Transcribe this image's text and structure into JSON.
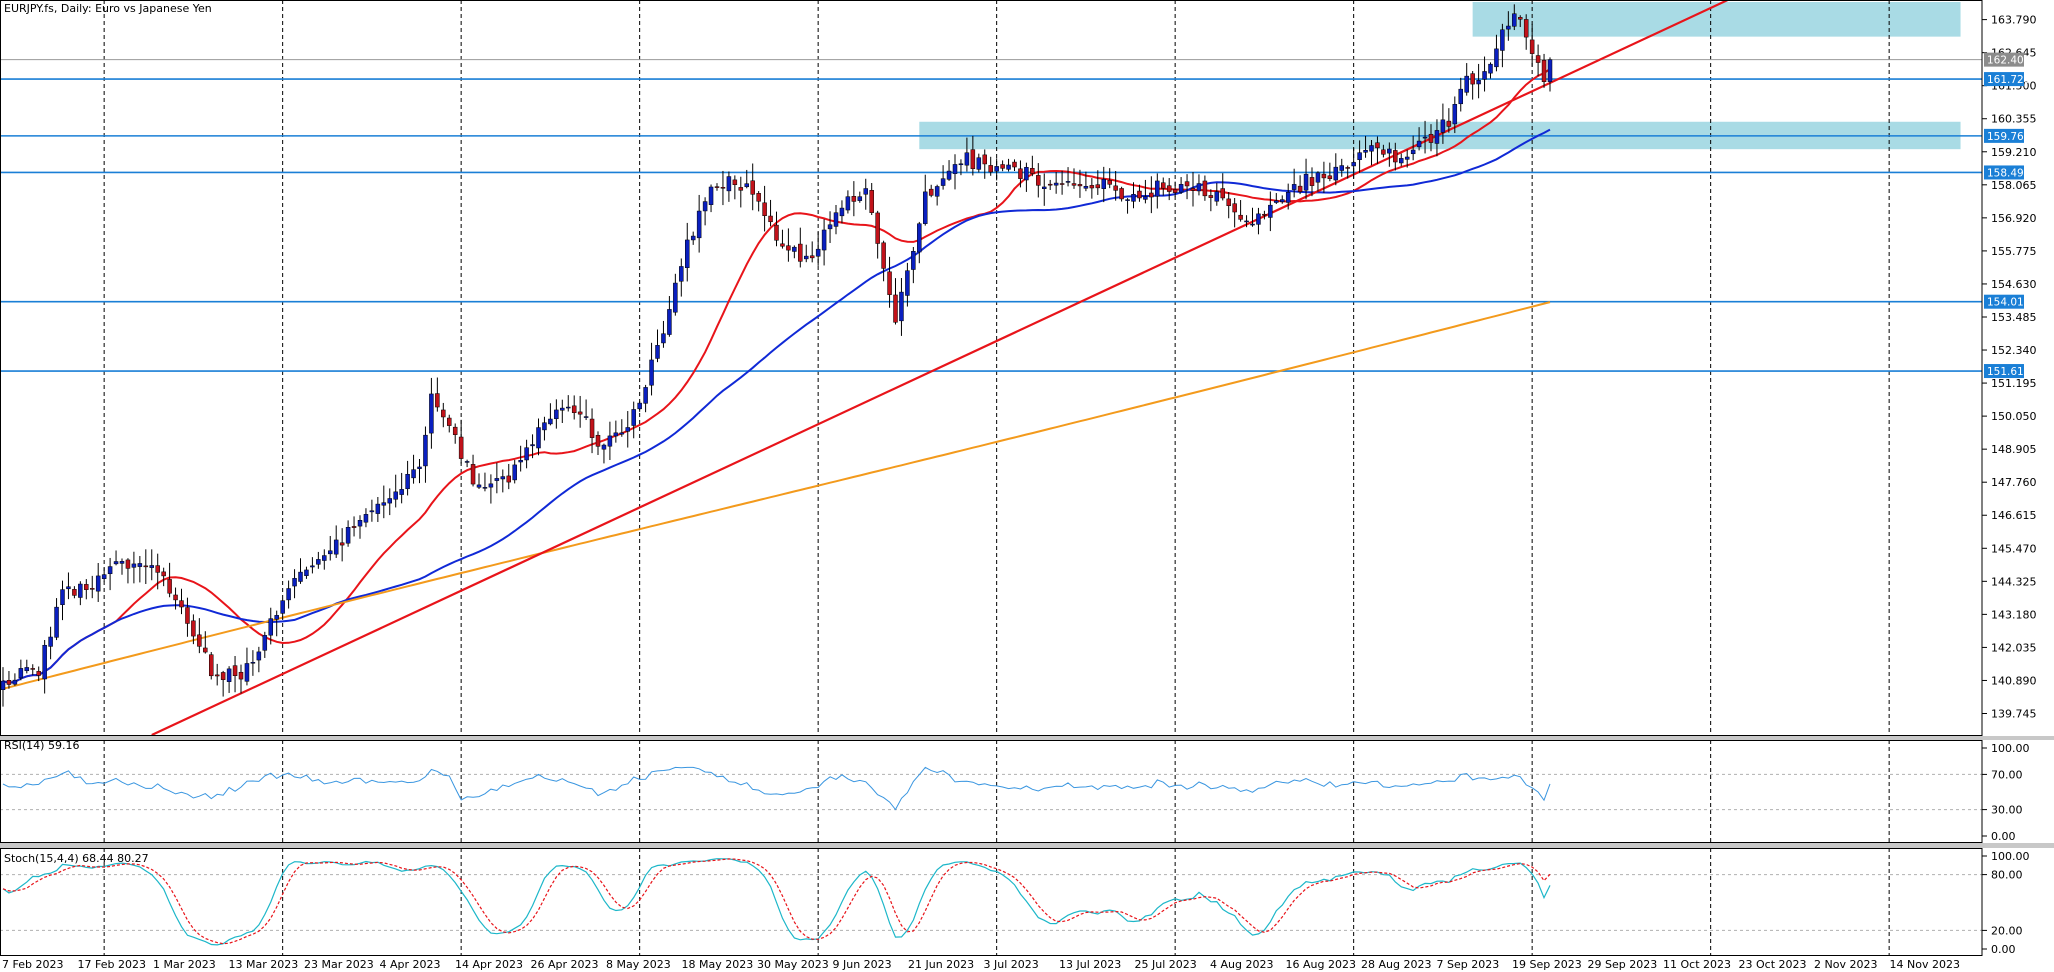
{
  "chart_data": {
    "type": "candlestick",
    "title": "EURJPY.fs, Daily:  Euro vs Japanese Yen",
    "symbol": "EURJPY.fs",
    "timeframe": "Daily",
    "date_labels": [
      "7 Feb 2023",
      "17 Feb 2023",
      "1 Mar 2023",
      "13 Mar 2023",
      "23 Mar 2023",
      "4 Apr 2023",
      "14 Apr 2023",
      "26 Apr 2023",
      "8 May 2023",
      "18 May 2023",
      "30 May 2023",
      "9 Jun 2023",
      "21 Jun 2023",
      "3 Jul 2023",
      "13 Jul 2023",
      "25 Jul 2023",
      "4 Aug 2023",
      "16 Aug 2023",
      "28 Aug 2023",
      "7 Sep 2023",
      "19 Sep 2023",
      "29 Sep 2023",
      "11 Oct 2023",
      "23 Oct 2023",
      "2 Nov 2023",
      "14 Nov 2023"
    ],
    "price_axis": {
      "ticks": [
        "163.790",
        "162.645",
        "161.500",
        "160.355",
        "159.210",
        "158.065",
        "156.920",
        "155.775",
        "154.630",
        "153.485",
        "152.340",
        "151.195",
        "150.050",
        "148.905",
        "147.760",
        "146.615",
        "145.470",
        "144.325",
        "143.180",
        "142.035",
        "140.890",
        "139.745"
      ],
      "ylim": [
        139.0,
        164.4
      ]
    },
    "horizontal_levels": [
      {
        "label": "161.729",
        "value": 161.729,
        "color": "#1a7fd6"
      },
      {
        "label": "159.761",
        "value": 159.761,
        "color": "#1a7fd6"
      },
      {
        "label": "158.493",
        "value": 158.493,
        "color": "#1a7fd6"
      },
      {
        "label": "154.015",
        "value": 154.015,
        "color": "#1a7fd6"
      },
      {
        "label": "151.612",
        "value": 151.612,
        "color": "#1a7fd6"
      }
    ],
    "current_price": {
      "label": "162.403",
      "value": 162.403
    },
    "zones": [
      {
        "from_index": 247,
        "to_index": 329,
        "low": 163.2,
        "high": 164.4,
        "color": "#a9dbe5"
      },
      {
        "from_index": 154,
        "to_index": 329,
        "low": 159.3,
        "high": 160.25,
        "color": "#a9dbe5"
      }
    ],
    "trendline": {
      "start_index": 25,
      "start_value": 139.0,
      "end_index": 259,
      "end_value": 161.5,
      "color": "#e8141a"
    },
    "moving_average_colors": {
      "fast": "#e8141a",
      "medium": "#1029d6",
      "slow": "#f39a1c"
    },
    "candle_colors": {
      "up": "#0a1fbf",
      "down": "#c1121a"
    },
    "anchors": [
      [
        0,
        140.9
      ],
      [
        6,
        141.3
      ],
      [
        10,
        143.8
      ],
      [
        15,
        144.3
      ],
      [
        20,
        145.0
      ],
      [
        25,
        144.8
      ],
      [
        30,
        143.4
      ],
      [
        35,
        141.2
      ],
      [
        40,
        141.0
      ],
      [
        45,
        142.8
      ],
      [
        50,
        144.8
      ],
      [
        55,
        145.3
      ],
      [
        60,
        146.5
      ],
      [
        65,
        147.3
      ],
      [
        70,
        148.2
      ],
      [
        72,
        151.0
      ],
      [
        75,
        149.8
      ],
      [
        80,
        147.4
      ],
      [
        85,
        147.8
      ],
      [
        90,
        149.6
      ],
      [
        95,
        150.6
      ],
      [
        100,
        149.2
      ],
      [
        105,
        149.6
      ],
      [
        110,
        152.3
      ],
      [
        115,
        156.1
      ],
      [
        120,
        158.2
      ],
      [
        125,
        158.0
      ],
      [
        130,
        156.2
      ],
      [
        135,
        155.4
      ],
      [
        140,
        157.0
      ],
      [
        145,
        158.1
      ],
      [
        150,
        153.2
      ],
      [
        155,
        157.7
      ],
      [
        160,
        159.0
      ],
      [
        165,
        158.8
      ],
      [
        170,
        158.6
      ],
      [
        178,
        158.0
      ],
      [
        185,
        158.1
      ],
      [
        190,
        157.6
      ],
      [
        195,
        158.1
      ],
      [
        200,
        157.9
      ],
      [
        205,
        157.6
      ],
      [
        210,
        156.8
      ],
      [
        215,
        157.8
      ],
      [
        220,
        158.3
      ],
      [
        225,
        158.6
      ],
      [
        230,
        159.4
      ],
      [
        235,
        159.0
      ],
      [
        240,
        159.6
      ],
      [
        243,
        160.3
      ],
      [
        246,
        161.6
      ],
      [
        250,
        162.1
      ],
      [
        253,
        163.8
      ],
      [
        255,
        164.0
      ],
      [
        257,
        162.6
      ],
      [
        259,
        161.9
      ],
      [
        260,
        162.4
      ]
    ],
    "noise_seed": 20230207,
    "rsi_panel": {
      "label": "RSI(14) 59.16",
      "ticks": [
        "100.00",
        "70.00",
        "30.00",
        "0.00"
      ],
      "levels": [
        70,
        30
      ],
      "color": "#3a96e0",
      "last_value": 59.16
    },
    "stoch_panel": {
      "label": "Stoch(15,4,4) 68.44 80.27",
      "ticks": [
        "100.00",
        "80.00",
        "20.00",
        "0.00"
      ],
      "levels": [
        80,
        20
      ],
      "main_color": "#1db7c9",
      "signal_color": "#e8141a",
      "last_main": 68.44,
      "last_signal": 80.27
    },
    "grid": "vertical dashed"
  }
}
